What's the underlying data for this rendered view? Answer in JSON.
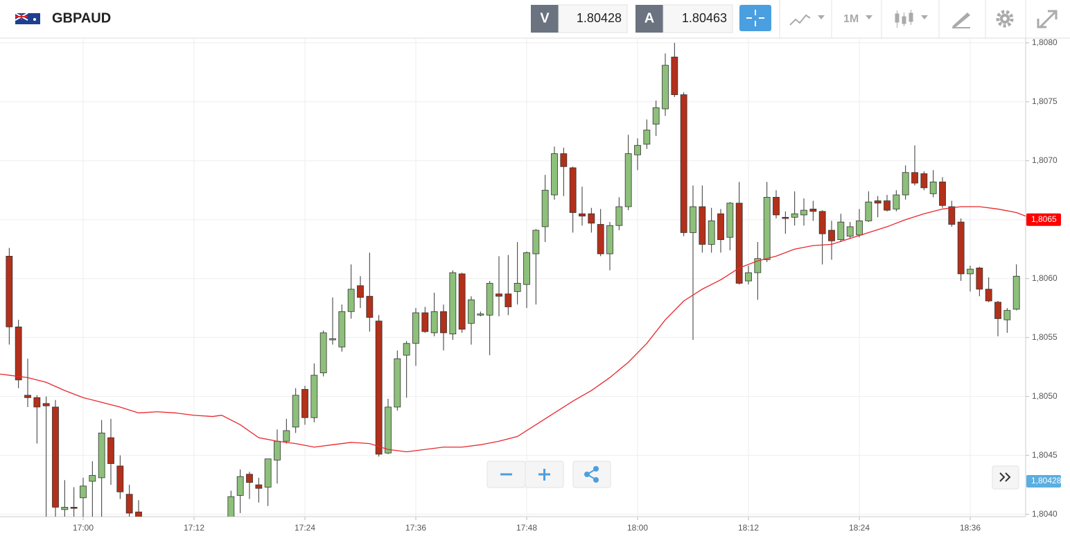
{
  "header": {
    "symbol": "GBPAUD",
    "bid_label": "V",
    "bid": 1.80428,
    "ask_label": "A",
    "ask": 1.80463,
    "timeframe": "1M"
  },
  "chart_data": {
    "type": "candlestick",
    "x": [
      "16:52",
      "16:53",
      "16:54",
      "16:55",
      "16:56",
      "16:57",
      "16:58",
      "16:59",
      "17:00",
      "17:01",
      "17:02",
      "17:03",
      "17:04",
      "17:05",
      "17:06",
      "17:16",
      "17:17",
      "17:18",
      "17:19",
      "17:20",
      "17:21",
      "17:22",
      "17:23",
      "17:24",
      "17:25",
      "17:26",
      "17:27",
      "17:28",
      "17:29",
      "17:30",
      "17:31",
      "17:32",
      "17:33",
      "17:34",
      "17:35",
      "17:36",
      "17:37",
      "17:38",
      "17:39",
      "17:40",
      "17:41",
      "17:42",
      "17:43",
      "17:44",
      "17:45",
      "17:46",
      "17:47",
      "17:48",
      "17:49",
      "17:50",
      "17:51",
      "17:52",
      "17:53",
      "17:54",
      "17:55",
      "17:56",
      "17:57",
      "17:58",
      "17:59",
      "18:00",
      "18:01",
      "18:02",
      "18:03",
      "18:04",
      "18:05",
      "18:06",
      "18:07",
      "18:08",
      "18:09",
      "18:10",
      "18:11",
      "18:12",
      "18:13",
      "18:14",
      "18:15",
      "18:16",
      "18:17",
      "18:18",
      "18:19",
      "18:20",
      "18:21",
      "18:22",
      "18:23",
      "18:24",
      "18:25",
      "18:26",
      "18:27",
      "18:28",
      "18:29",
      "18:30",
      "18:31",
      "18:32",
      "18:33",
      "18:34",
      "18:35",
      "18:36",
      "18:37",
      "18:38",
      "18:39",
      "18:40",
      "18:41"
    ],
    "open": [
      1.80619,
      1.80559,
      1.80501,
      1.80499,
      1.80494,
      1.80491,
      1.80404,
      1.80406,
      1.80414,
      1.80428,
      1.80431,
      1.80465,
      1.80441,
      1.80417,
      1.80402,
      1.80395,
      1.80416,
      1.80434,
      1.80425,
      1.80423,
      1.80446,
      1.80462,
      1.80474,
      1.80506,
      1.80482,
      1.8052,
      1.80548,
      1.80542,
      1.80572,
      1.80594,
      1.80585,
      1.80564,
      1.80452,
      1.80491,
      1.80535,
      1.80545,
      1.80571,
      1.80554,
      1.80572,
      1.80553,
      1.80604,
      1.80562,
      1.80569,
      1.80569,
      1.80587,
      1.80587,
      1.80589,
      1.80595,
      1.80621,
      1.80644,
      1.80671,
      1.80706,
      1.80694,
      1.80655,
      1.80655,
      1.80646,
      1.80621,
      1.80645,
      1.80661,
      1.80705,
      1.80714,
      1.80731,
      1.80744,
      1.80788,
      1.80756,
      1.80639,
      1.80661,
      1.80629,
      1.80655,
      1.80635,
      1.80664,
      1.80598,
      1.80605,
      1.80616,
      1.80669,
      1.80652,
      1.80652,
      1.80654,
      1.80659,
      1.80657,
      1.80641,
      1.80633,
      1.80636,
      1.80637,
      1.80649,
      1.80666,
      1.80666,
      1.80659,
      1.80671,
      1.8069,
      1.80689,
      1.80672,
      1.80682,
      1.80661,
      1.80648,
      1.80604,
      1.80609,
      1.80591,
      1.8058,
      1.80565,
      1.80574
    ],
    "high": [
      1.80626,
      1.80565,
      1.80532,
      1.80501,
      1.805,
      1.80497,
      1.80429,
      1.80423,
      1.80431,
      1.80445,
      1.8048,
      1.80481,
      1.8045,
      1.80425,
      1.80412,
      1.8042,
      1.80438,
      1.80436,
      1.80431,
      1.80447,
      1.80472,
      1.80481,
      1.80507,
      1.80509,
      1.80528,
      1.80556,
      1.80584,
      1.80578,
      1.80612,
      1.80602,
      1.80622,
      1.80569,
      1.80498,
      1.80539,
      1.80547,
      1.80575,
      1.80576,
      1.80588,
      1.80578,
      1.80607,
      1.80605,
      1.80585,
      1.80572,
      1.80598,
      1.80619,
      1.8062,
      1.80631,
      1.80623,
      1.80642,
      1.80688,
      1.80712,
      1.80711,
      1.80695,
      1.80678,
      1.8066,
      1.80659,
      1.80648,
      1.80669,
      1.80722,
      1.80719,
      1.80735,
      1.80751,
      1.80791,
      1.808,
      1.80758,
      1.80679,
      1.80679,
      1.8066,
      1.80659,
      1.80665,
      1.80682,
      1.80611,
      1.80631,
      1.80682,
      1.80675,
      1.80657,
      1.80674,
      1.80668,
      1.80666,
      1.80658,
      1.80649,
      1.80655,
      1.80648,
      1.80659,
      1.80674,
      1.8067,
      1.80671,
      1.80675,
      1.80696,
      1.80713,
      1.80691,
      1.80692,
      1.80686,
      1.80666,
      1.80651,
      1.80611,
      1.8061,
      1.80601,
      1.80581,
      1.80575,
      1.80612
    ],
    "low": [
      1.80544,
      1.80507,
      1.80491,
      1.8046,
      1.8039,
      1.8039,
      1.8039,
      1.8039,
      1.8039,
      1.8039,
      1.8039,
      1.80425,
      1.80413,
      1.8039,
      1.8039,
      1.8039,
      1.80401,
      1.80413,
      1.8041,
      1.80407,
      1.80426,
      1.8046,
      1.80469,
      1.80476,
      1.80478,
      1.80517,
      1.80544,
      1.80538,
      1.80566,
      1.80575,
      1.80555,
      1.80449,
      1.80451,
      1.80488,
      1.80499,
      1.80526,
      1.80554,
      1.80551,
      1.80539,
      1.80548,
      1.80554,
      1.80544,
      1.80568,
      1.80535,
      1.80568,
      1.80569,
      1.80578,
      1.80575,
      1.80578,
      1.80631,
      1.80667,
      1.8067,
      1.80639,
      1.80645,
      1.80639,
      1.80619,
      1.80607,
      1.80641,
      1.80658,
      1.80692,
      1.8071,
      1.80721,
      1.80738,
      1.80754,
      1.80636,
      1.80548,
      1.80622,
      1.80622,
      1.80622,
      1.80624,
      1.80595,
      1.80595,
      1.80582,
      1.80614,
      1.80651,
      1.80638,
      1.80645,
      1.80645,
      1.80649,
      1.80612,
      1.80616,
      1.80631,
      1.80634,
      1.80635,
      1.80648,
      1.80652,
      1.80657,
      1.80657,
      1.80667,
      1.80679,
      1.80675,
      1.80669,
      1.8066,
      1.80644,
      1.80598,
      1.80589,
      1.80585,
      1.8058,
      1.80551,
      1.80554,
      1.80573
    ],
    "close": [
      1.80559,
      1.80514,
      1.80499,
      1.80491,
      1.80492,
      1.80406,
      1.80406,
      1.80405,
      1.80424,
      1.80433,
      1.80469,
      1.80443,
      1.80419,
      1.80401,
      1.80395,
      1.80415,
      1.80432,
      1.80427,
      1.80422,
      1.80447,
      1.80462,
      1.80471,
      1.80501,
      1.80482,
      1.80518,
      1.80554,
      1.80549,
      1.80572,
      1.80591,
      1.80584,
      1.80567,
      1.80451,
      1.80491,
      1.80532,
      1.80545,
      1.80571,
      1.80555,
      1.80572,
      1.80554,
      1.80605,
      1.80557,
      1.80582,
      1.8057,
      1.80596,
      1.80585,
      1.80576,
      1.80596,
      1.80622,
      1.80641,
      1.80675,
      1.80706,
      1.80695,
      1.80656,
      1.80653,
      1.80647,
      1.80621,
      1.80645,
      1.80661,
      1.80706,
      1.80713,
      1.80726,
      1.80745,
      1.80781,
      1.80756,
      1.80639,
      1.80661,
      1.80629,
      1.80649,
      1.80633,
      1.80664,
      1.80596,
      1.80605,
      1.80617,
      1.80669,
      1.80654,
      1.80651,
      1.80655,
      1.80658,
      1.80657,
      1.80638,
      1.80632,
      1.80648,
      1.80644,
      1.80649,
      1.80665,
      1.80664,
      1.80658,
      1.80671,
      1.8069,
      1.80681,
      1.80677,
      1.80682,
      1.80662,
      1.80646,
      1.80604,
      1.80608,
      1.80591,
      1.80581,
      1.80566,
      1.80573,
      1.80602
    ],
    "up_color": "#8dc07a",
    "down_color": "#b3301a",
    "lines": [
      {
        "color": "#e8262b",
        "x": [
          "16:51",
          "16:52",
          "16:54",
          "16:56",
          "16:58",
          "17:00",
          "17:02",
          "17:04",
          "17:06",
          "17:08",
          "17:10",
          "17:12",
          "17:14",
          "17:15",
          "17:17",
          "17:19",
          "17:21",
          "17:23",
          "17:25",
          "17:27",
          "17:29",
          "17:31",
          "17:33",
          "17:35",
          "17:37",
          "17:39",
          "17:41",
          "17:43",
          "17:45",
          "17:47",
          "17:49",
          "17:51",
          "17:53",
          "17:55",
          "17:57",
          "17:59",
          "18:01",
          "18:03",
          "18:05",
          "18:07",
          "18:09",
          "18:11",
          "18:13",
          "18:15",
          "18:17",
          "18:19",
          "18:21",
          "18:23",
          "18:25",
          "18:27",
          "18:29",
          "18:31",
          "18:33",
          "18:35",
          "18:37",
          "18:39",
          "18:41",
          "18:42"
        ],
        "values": [
          1.80519,
          1.80518,
          1.80516,
          1.80512,
          1.80505,
          1.80499,
          1.80495,
          1.80491,
          1.80486,
          1.80487,
          1.80486,
          1.80484,
          1.80483,
          1.80484,
          1.80476,
          1.80465,
          1.80462,
          1.8046,
          1.80457,
          1.80459,
          1.80461,
          1.8046,
          1.80455,
          1.80453,
          1.80455,
          1.80457,
          1.80457,
          1.80459,
          1.80462,
          1.80466,
          1.80476,
          1.80486,
          1.80496,
          1.80505,
          1.80516,
          1.80529,
          1.80545,
          1.80565,
          1.80581,
          1.80591,
          1.80599,
          1.80609,
          1.80615,
          1.80619,
          1.80625,
          1.80628,
          1.80629,
          1.80634,
          1.80639,
          1.80644,
          1.8065,
          1.80655,
          1.80659,
          1.80661,
          1.80661,
          1.80659,
          1.80656,
          1.80653
        ]
      }
    ],
    "badges": [
      {
        "value": 1.8065,
        "label": "1,8065",
        "color": "#ff0000"
      },
      {
        "value": 1.80428,
        "label": "1,80428",
        "color": "#5aaee0"
      }
    ],
    "xlim": [
      "16:51",
      "18:42"
    ],
    "xticks": [
      "17:00",
      "17:12",
      "17:24",
      "17:36",
      "17:48",
      "18:00",
      "18:12",
      "18:24",
      "18:36"
    ],
    "ylim": [
      1.80398,
      1.80804
    ],
    "yticks": [
      {
        "value": 1.804,
        "label": "1,8040"
      },
      {
        "value": 1.8045,
        "label": "1,8045"
      },
      {
        "value": 1.805,
        "label": "1,8050"
      },
      {
        "value": 1.8055,
        "label": "1,8055"
      },
      {
        "value": 1.806,
        "label": "1,8060"
      },
      {
        "value": 1.8065,
        "label": "1,8065"
      },
      {
        "value": 1.807,
        "label": "1,8070"
      },
      {
        "value": 1.8075,
        "label": "1,8075"
      },
      {
        "value": 1.808,
        "label": "1,8080"
      }
    ],
    "grid": true
  }
}
